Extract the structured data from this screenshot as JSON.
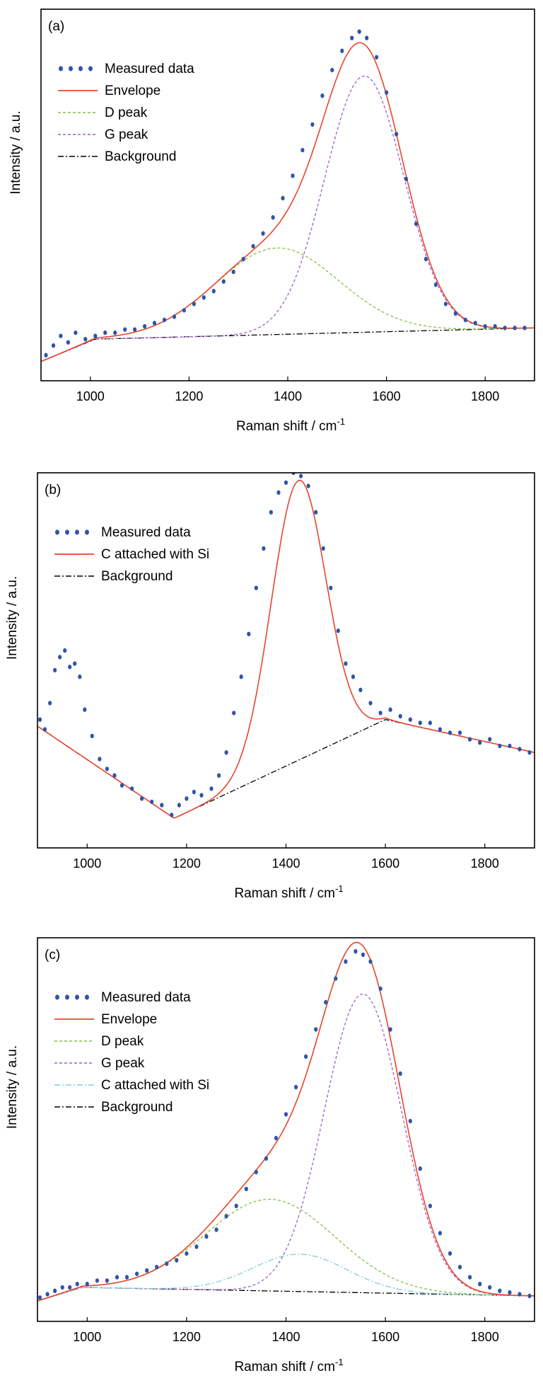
{
  "figure": {
    "x_axis_label": "Raman shift / cm",
    "x_axis_label_sup": "-1",
    "y_axis_label": "Intensity / a.u."
  },
  "chart_data": [
    {
      "type": "line",
      "panel_label": "(a)",
      "xlabel": "Raman shift / cm-1",
      "ylabel": "Intensity / a.u.",
      "xlim": [
        900,
        1900
      ],
      "ylim": [
        -0.13,
        1.03
      ],
      "x_ticks": [
        1000,
        1200,
        1400,
        1600,
        1800
      ],
      "y_ticks_visible": false,
      "grid": false,
      "legend_position": "top-left",
      "baseline": [
        [
          900,
          -0.07
        ],
        [
          1010,
          0.0
        ],
        [
          1900,
          0.035
        ]
      ],
      "peaks": [
        {
          "name": "D peak",
          "center": 1378,
          "amplitude": 0.27,
          "width": 125
        },
        {
          "name": "G peak",
          "center": 1555,
          "amplitude": 0.8,
          "width": 80
        }
      ],
      "series": [
        {
          "name": "Measured data",
          "style": "dotted",
          "color": "#2f54a8"
        },
        {
          "name": "Envelope",
          "style": "solid",
          "color": "#e8452c"
        },
        {
          "name": "D peak",
          "style": "dashed",
          "color": "#7fc241"
        },
        {
          "name": "G peak",
          "style": "dashed",
          "color": "#9b5fc9"
        },
        {
          "name": "Background",
          "style": "dashdot",
          "color": "#000000"
        }
      ],
      "measured_points": [
        [
          910,
          -0.05
        ],
        [
          925,
          -0.02
        ],
        [
          940,
          0.01
        ],
        [
          955,
          -0.01
        ],
        [
          970,
          0.02
        ],
        [
          990,
          0.0
        ],
        [
          1010,
          0.01
        ],
        [
          1030,
          0.02
        ],
        [
          1050,
          0.02
        ],
        [
          1070,
          0.03
        ],
        [
          1090,
          0.03
        ],
        [
          1110,
          0.04
        ],
        [
          1130,
          0.05
        ],
        [
          1150,
          0.06
        ],
        [
          1170,
          0.07
        ],
        [
          1190,
          0.09
        ],
        [
          1210,
          0.11
        ],
        [
          1230,
          0.13
        ],
        [
          1250,
          0.15
        ],
        [
          1270,
          0.18
        ],
        [
          1290,
          0.21
        ],
        [
          1310,
          0.25
        ],
        [
          1330,
          0.29
        ],
        [
          1350,
          0.33
        ],
        [
          1370,
          0.38
        ],
        [
          1390,
          0.44
        ],
        [
          1410,
          0.51
        ],
        [
          1430,
          0.59
        ],
        [
          1450,
          0.67
        ],
        [
          1470,
          0.76
        ],
        [
          1490,
          0.84
        ],
        [
          1510,
          0.9
        ],
        [
          1530,
          0.94
        ],
        [
          1545,
          0.96
        ],
        [
          1560,
          0.94
        ],
        [
          1580,
          0.88
        ],
        [
          1600,
          0.77
        ],
        [
          1620,
          0.64
        ],
        [
          1640,
          0.5
        ],
        [
          1660,
          0.36
        ],
        [
          1680,
          0.25
        ],
        [
          1700,
          0.17
        ],
        [
          1720,
          0.11
        ],
        [
          1740,
          0.08
        ],
        [
          1760,
          0.06
        ],
        [
          1780,
          0.05
        ],
        [
          1800,
          0.04
        ],
        [
          1820,
          0.04
        ],
        [
          1840,
          0.035
        ],
        [
          1860,
          0.035
        ],
        [
          1880,
          0.035
        ]
      ]
    },
    {
      "type": "line",
      "panel_label": "(b)",
      "xlabel": "Raman shift / cm-1",
      "ylabel": "Intensity / a.u.",
      "xlim": [
        900,
        1900
      ],
      "ylim": [
        -0.09,
        1.05
      ],
      "x_ticks": [
        1000,
        1200,
        1400,
        1600,
        1800
      ],
      "y_ticks_visible": false,
      "grid": false,
      "legend_position": "top-left",
      "baseline": [
        [
          900,
          0.28
        ],
        [
          1175,
          0.0
        ],
        [
          1600,
          0.3
        ],
        [
          1900,
          0.2
        ]
      ],
      "peaks": [
        {
          "name": "C attached with Si",
          "center": 1425,
          "amplitude": 0.85,
          "width": 55
        }
      ],
      "series": [
        {
          "name": "Measured data",
          "style": "dotted",
          "color": "#2f54a8"
        },
        {
          "name": "C attached with Si",
          "style": "solid",
          "color": "#e8452c"
        },
        {
          "name": "Background",
          "style": "dashdot",
          "color": "#000000"
        }
      ],
      "measured_points": [
        [
          905,
          0.3
        ],
        [
          915,
          0.27
        ],
        [
          925,
          0.35
        ],
        [
          935,
          0.45
        ],
        [
          945,
          0.49
        ],
        [
          955,
          0.51
        ],
        [
          965,
          0.46
        ],
        [
          975,
          0.47
        ],
        [
          985,
          0.43
        ],
        [
          995,
          0.33
        ],
        [
          1010,
          0.25
        ],
        [
          1025,
          0.18
        ],
        [
          1040,
          0.15
        ],
        [
          1055,
          0.13
        ],
        [
          1070,
          0.1
        ],
        [
          1090,
          0.09
        ],
        [
          1110,
          0.06
        ],
        [
          1130,
          0.05
        ],
        [
          1150,
          0.04
        ],
        [
          1170,
          0.01
        ],
        [
          1185,
          0.04
        ],
        [
          1200,
          0.06
        ],
        [
          1215,
          0.08
        ],
        [
          1230,
          0.07
        ],
        [
          1250,
          0.09
        ],
        [
          1265,
          0.13
        ],
        [
          1280,
          0.2
        ],
        [
          1295,
          0.32
        ],
        [
          1310,
          0.43
        ],
        [
          1325,
          0.56
        ],
        [
          1340,
          0.7
        ],
        [
          1355,
          0.82
        ],
        [
          1370,
          0.93
        ],
        [
          1385,
          0.99
        ],
        [
          1400,
          1.02
        ],
        [
          1415,
          1.05
        ],
        [
          1430,
          1.04
        ],
        [
          1445,
          1.01
        ],
        [
          1460,
          0.93
        ],
        [
          1475,
          0.82
        ],
        [
          1490,
          0.7
        ],
        [
          1505,
          0.57
        ],
        [
          1520,
          0.47
        ],
        [
          1535,
          0.43
        ],
        [
          1550,
          0.39
        ],
        [
          1570,
          0.35
        ],
        [
          1590,
          0.32
        ],
        [
          1610,
          0.33
        ],
        [
          1630,
          0.31
        ],
        [
          1650,
          0.3
        ],
        [
          1670,
          0.29
        ],
        [
          1690,
          0.29
        ],
        [
          1710,
          0.27
        ],
        [
          1730,
          0.26
        ],
        [
          1750,
          0.26
        ],
        [
          1770,
          0.24
        ],
        [
          1790,
          0.23
        ],
        [
          1810,
          0.24
        ],
        [
          1830,
          0.22
        ],
        [
          1850,
          0.22
        ],
        [
          1870,
          0.21
        ],
        [
          1890,
          0.2
        ]
      ]
    },
    {
      "type": "line",
      "panel_label": "(c)",
      "xlabel": "Raman shift / cm-1",
      "ylabel": "Intensity / a.u.",
      "xlim": [
        900,
        1900
      ],
      "ylim": [
        -0.1,
        1.03
      ],
      "x_ticks": [
        1000,
        1200,
        1400,
        1600,
        1800
      ],
      "y_ticks_visible": false,
      "grid": false,
      "legend_position": "top-left",
      "baseline": [
        [
          900,
          -0.04
        ],
        [
          990,
          0.0
        ],
        [
          1900,
          -0.025
        ]
      ],
      "peaks": [
        {
          "name": "D peak",
          "center": 1368,
          "amplitude": 0.27,
          "width": 130
        },
        {
          "name": "G peak",
          "center": 1555,
          "amplitude": 0.88,
          "width": 78
        },
        {
          "name": "C attached with Si",
          "center": 1428,
          "amplitude": 0.11,
          "width": 95
        }
      ],
      "series": [
        {
          "name": "Measured data",
          "style": "dotted",
          "color": "#2f54a8"
        },
        {
          "name": "Envelope",
          "style": "solid",
          "color": "#e8452c"
        },
        {
          "name": "D peak",
          "style": "dashed",
          "color": "#7fc241"
        },
        {
          "name": "G peak",
          "style": "dashed",
          "color": "#9b5fc9"
        },
        {
          "name": "C attached with Si",
          "style": "dashdot",
          "color": "#7fcfd6"
        },
        {
          "name": "Background",
          "style": "dashdot",
          "color": "#000000"
        }
      ],
      "measured_points": [
        [
          905,
          -0.03
        ],
        [
          920,
          -0.02
        ],
        [
          935,
          -0.01
        ],
        [
          950,
          0.0
        ],
        [
          965,
          0.0
        ],
        [
          980,
          0.01
        ],
        [
          1000,
          0.01
        ],
        [
          1020,
          0.02
        ],
        [
          1040,
          0.02
        ],
        [
          1060,
          0.03
        ],
        [
          1080,
          0.03
        ],
        [
          1100,
          0.04
        ],
        [
          1120,
          0.05
        ],
        [
          1140,
          0.06
        ],
        [
          1160,
          0.07
        ],
        [
          1180,
          0.08
        ],
        [
          1200,
          0.1
        ],
        [
          1220,
          0.12
        ],
        [
          1240,
          0.15
        ],
        [
          1260,
          0.17
        ],
        [
          1280,
          0.21
        ],
        [
          1300,
          0.24
        ],
        [
          1320,
          0.29
        ],
        [
          1340,
          0.34
        ],
        [
          1360,
          0.38
        ],
        [
          1380,
          0.44
        ],
        [
          1400,
          0.51
        ],
        [
          1420,
          0.59
        ],
        [
          1440,
          0.68
        ],
        [
          1460,
          0.76
        ],
        [
          1480,
          0.84
        ],
        [
          1500,
          0.91
        ],
        [
          1520,
          0.96
        ],
        [
          1540,
          0.99
        ],
        [
          1555,
          0.98
        ],
        [
          1570,
          0.96
        ],
        [
          1590,
          0.88
        ],
        [
          1610,
          0.76
        ],
        [
          1630,
          0.63
        ],
        [
          1650,
          0.49
        ],
        [
          1670,
          0.35
        ],
        [
          1690,
          0.24
        ],
        [
          1710,
          0.16
        ],
        [
          1730,
          0.1
        ],
        [
          1750,
          0.06
        ],
        [
          1770,
          0.03
        ],
        [
          1790,
          0.01
        ],
        [
          1810,
          0.0
        ],
        [
          1830,
          -0.01
        ],
        [
          1850,
          -0.015
        ],
        [
          1870,
          -0.02
        ],
        [
          1890,
          -0.025
        ]
      ]
    }
  ]
}
